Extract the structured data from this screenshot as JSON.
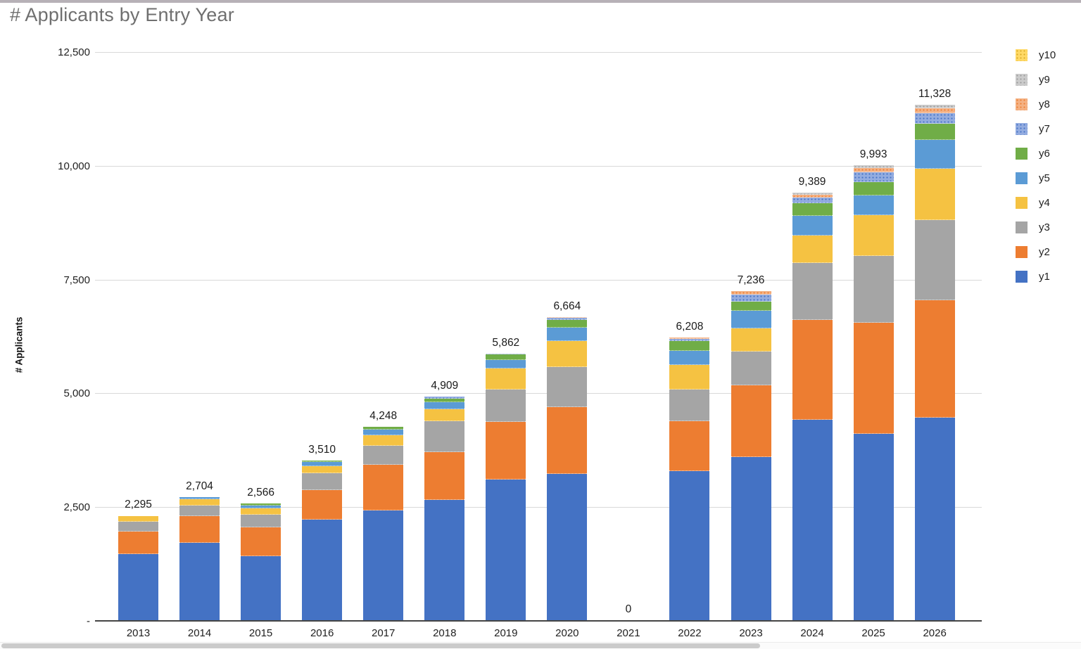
{
  "header": {
    "title": "# Applicants by Entry Year"
  },
  "chart_data": {
    "type": "bar",
    "stacked": true,
    "title": "# Applicants by Entry Year",
    "xlabel": "",
    "ylabel": "# Applicants",
    "ylim": [
      0,
      12500
    ],
    "ytick_step": 2500,
    "yticks": [
      {
        "value": 0,
        "label": "-"
      },
      {
        "value": 2500,
        "label": "2,500"
      },
      {
        "value": 5000,
        "label": "5,000"
      },
      {
        "value": 7500,
        "label": "7,500"
      },
      {
        "value": 10000,
        "label": "10,000"
      },
      {
        "value": 12500,
        "label": "12,500"
      }
    ],
    "grid": true,
    "legend_position": "right",
    "legend_order_top_to_bottom": [
      "y10",
      "y9",
      "y8",
      "y7",
      "y6",
      "y5",
      "y4",
      "y3",
      "y2",
      "y1"
    ],
    "categories": [
      "2013",
      "2014",
      "2015",
      "2016",
      "2017",
      "2018",
      "2019",
      "2020",
      "2021",
      "2022",
      "2023",
      "2024",
      "2025",
      "2026"
    ],
    "totals": [
      2295,
      2704,
      2566,
      3510,
      4248,
      4909,
      5862,
      6664,
      0,
      6208,
      7236,
      9389,
      9993,
      11328
    ],
    "total_labels": [
      "2,295",
      "2,704",
      "2,566",
      "3,510",
      "4,248",
      "4,909",
      "5,862",
      "6,664",
      "0",
      "6,208",
      "7,236",
      "9,389",
      "9,993",
      "11,328"
    ],
    "series": [
      {
        "name": "y1",
        "color": "#4472C4",
        "dotted": false,
        "dot_color": null,
        "values": [
          1460,
          1700,
          1410,
          2210,
          2405,
          2640,
          3095,
          3215,
          0,
          3280,
          3590,
          4400,
          4100,
          4450
        ]
      },
      {
        "name": "y2",
        "color": "#ED7D31",
        "dotted": false,
        "dot_color": null,
        "values": [
          490,
          585,
          630,
          655,
          1015,
          1055,
          1265,
          1467,
          0,
          1093,
          1571,
          2200,
          2436,
          2580
        ]
      },
      {
        "name": "y3",
        "color": "#A5A5A5",
        "dotted": false,
        "dot_color": null,
        "values": [
          215,
          240,
          273,
          360,
          410,
          680,
          705,
          886,
          0,
          695,
          742,
          1250,
          1468,
          1760
        ]
      },
      {
        "name": "y4",
        "color": "#F5C242",
        "dotted": false,
        "dot_color": null,
        "values": [
          130,
          135,
          139,
          160,
          230,
          258,
          460,
          571,
          0,
          541,
          514,
          610,
          892,
          1130
        ]
      },
      {
        "name": "y5",
        "color": "#5B9BD5",
        "dotted": false,
        "dot_color": null,
        "values": [
          0,
          44,
          66,
          85,
          130,
          154,
          195,
          294,
          0,
          309,
          377,
          420,
          432,
          630
        ]
      },
      {
        "name": "y6",
        "color": "#70AD47",
        "dotted": false,
        "dot_color": null,
        "values": [
          0,
          0,
          48,
          40,
          58,
          87,
          117,
          170,
          0,
          212,
          206,
          290,
          299,
          365
        ]
      },
      {
        "name": "y7",
        "color": "#93ACE0",
        "dotted": true,
        "dot_color": "#4472C4",
        "values": [
          0,
          0,
          0,
          0,
          0,
          35,
          25,
          37,
          0,
          45,
          154,
          120,
          216,
          220
        ]
      },
      {
        "name": "y8",
        "color": "#F4B183",
        "dotted": true,
        "dot_color": "#ED7D31",
        "values": [
          0,
          0,
          0,
          0,
          0,
          0,
          0,
          24,
          0,
          33,
          82,
          60,
          93,
          120
        ]
      },
      {
        "name": "y9",
        "color": "#CBCBCB",
        "dotted": true,
        "dot_color": "#9B9B9B",
        "values": [
          0,
          0,
          0,
          0,
          0,
          0,
          0,
          0,
          0,
          0,
          0,
          39,
          57,
          73
        ]
      },
      {
        "name": "y10",
        "color": "#FFD966",
        "dotted": true,
        "dot_color": "#D8A927",
        "values": [
          0,
          0,
          0,
          0,
          0,
          0,
          0,
          0,
          0,
          0,
          0,
          0,
          0,
          0
        ]
      }
    ]
  }
}
